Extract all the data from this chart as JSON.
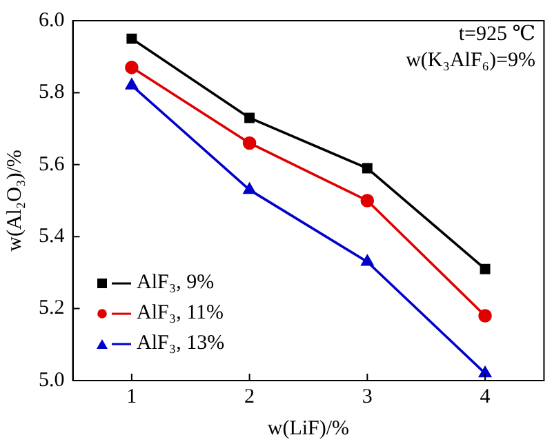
{
  "chart_data": {
    "type": "line",
    "xlabel": "w(LiF)/%",
    "ylabel": "w(Al₂O₃)/%",
    "x": [
      1,
      2,
      3,
      4
    ],
    "series": [
      {
        "name": "AlF₃, 9%",
        "color": "#000000",
        "marker": "square",
        "values": [
          5.95,
          5.73,
          5.59,
          5.31
        ]
      },
      {
        "name": "AlF₃, 11%",
        "color": "#e00000",
        "marker": "circle",
        "values": [
          5.87,
          5.66,
          5.5,
          5.18
        ]
      },
      {
        "name": "AlF₃, 13%",
        "color": "#0000cc",
        "marker": "triangle",
        "values": [
          5.82,
          5.53,
          5.33,
          5.02
        ]
      }
    ],
    "xlim": [
      0.5,
      4.5
    ],
    "xticks": [
      1,
      2,
      3,
      4
    ],
    "ylim": [
      5.0,
      6.0
    ],
    "yticks": [
      {
        "value": 5.0,
        "label": "5.0"
      },
      {
        "value": 5.2,
        "label": "5.2"
      },
      {
        "value": 5.4,
        "label": "5.4"
      },
      {
        "value": 5.6,
        "label": "5.6"
      },
      {
        "value": 5.8,
        "label": "5.8"
      },
      {
        "value": 6.0,
        "label": "6.0"
      }
    ],
    "annotations": [
      "t=925 ℃",
      "w(K₃AlF₆)=9%"
    ],
    "legend": "bottom left",
    "grid": false,
    "line_style": "solid"
  }
}
